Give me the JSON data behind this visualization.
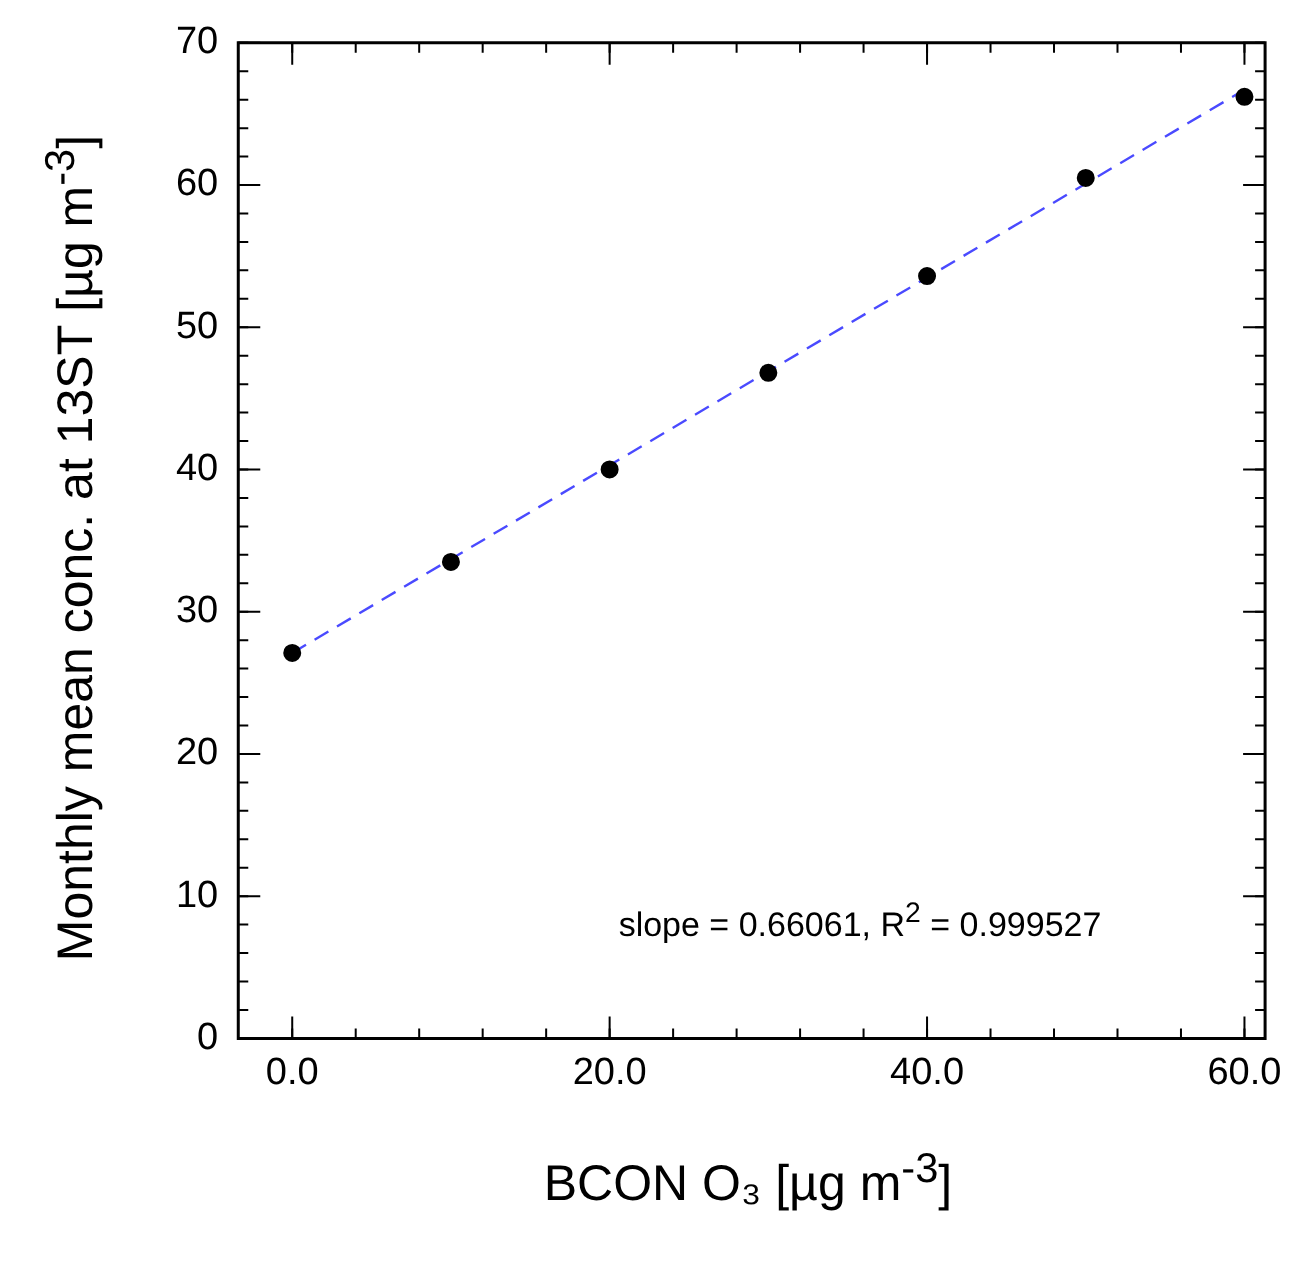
{
  "chart_data": {
    "type": "scatter",
    "xlabel": "BCON O₃ [µg m$^{-3}$]",
    "ylabel": "Monthly mean conc. at 13ST [µg m$^{-3}$]",
    "x": [
      0,
      10,
      20,
      30,
      40,
      50,
      60
    ],
    "series": [
      {
        "color": "#000000",
        "marker": "circle",
        "values": [
          27.1,
          33.5,
          40.0,
          46.8,
          53.6,
          60.5,
          66.2
        ]
      },
      {
        "type": "line",
        "color": "#4a4aff",
        "line_style": "dashed",
        "marker": "none",
        "x": [
          0,
          60
        ],
        "values": [
          27.1,
          66.7
        ]
      }
    ],
    "xlim": [
      -3.4,
      61.3
    ],
    "xticks": [
      {
        "value": 0,
        "label": "0.0"
      },
      {
        "value": 20,
        "label": "20.0"
      },
      {
        "value": 40,
        "label": "40.0"
      },
      {
        "value": 60,
        "label": "60.0"
      }
    ],
    "ylim": [
      0,
      70
    ],
    "yticks": [
      0,
      10,
      20,
      30,
      40,
      50,
      60,
      70
    ],
    "annotations": [
      "slope = 0.66061, R$^{2}$ = 0.999527"
    ],
    "grid": false,
    "legend": false
  }
}
